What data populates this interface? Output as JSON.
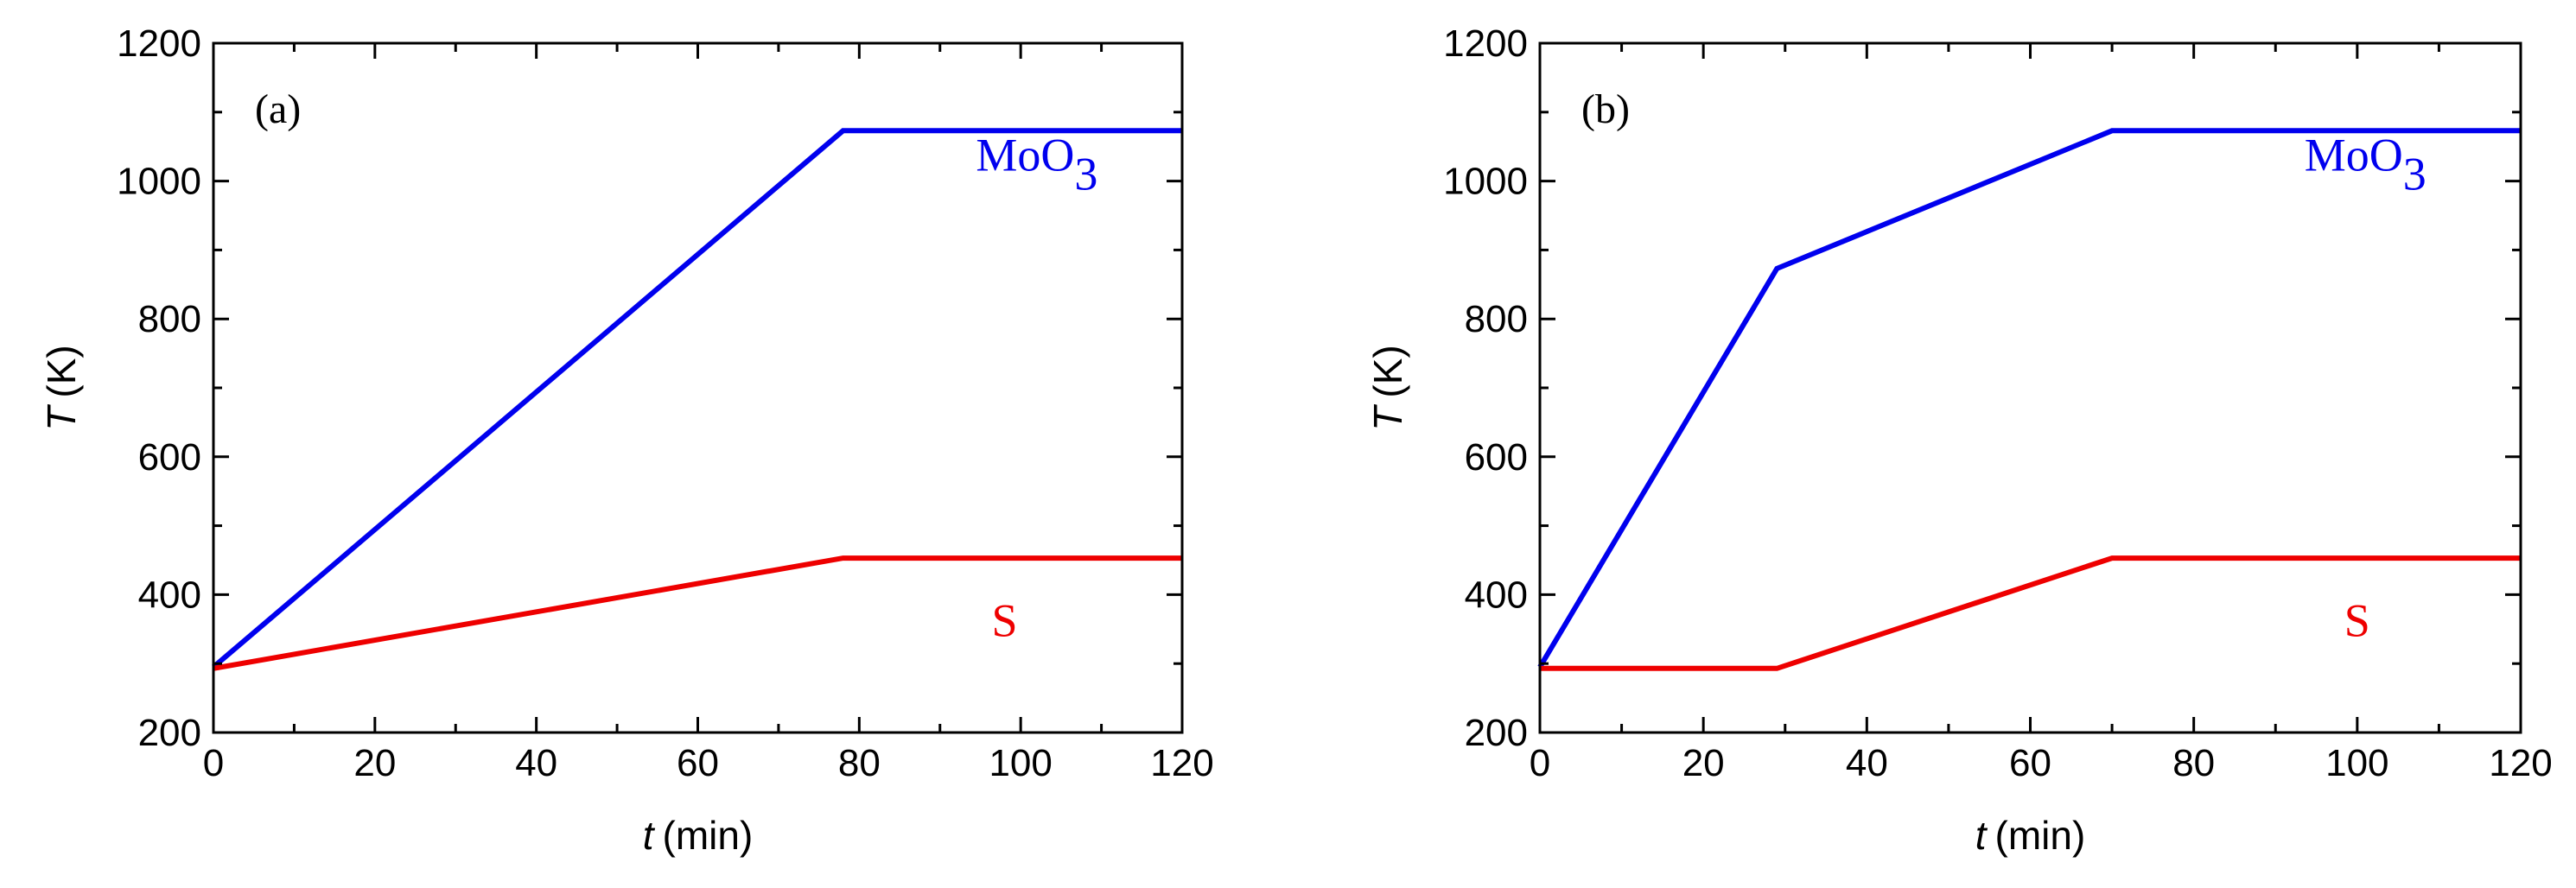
{
  "chart_data": [
    {
      "type": "line",
      "panel_label": "(a)",
      "xlabel_var": "t",
      "xlabel_unit": "(min)",
      "ylabel_var": "T",
      "ylabel_unit": "(K)",
      "xlim": [
        0,
        120
      ],
      "ylim": [
        200,
        1200
      ],
      "xticks": [
        0,
        20,
        40,
        60,
        80,
        100,
        120
      ],
      "yticks": [
        200,
        400,
        600,
        800,
        1000,
        1200
      ],
      "grid": false,
      "series": [
        {
          "name": "MoO3",
          "label_main": "MoO",
          "label_sub": "3",
          "color": "#0000ee",
          "x": [
            0,
            78,
            120
          ],
          "y": [
            295,
            1073,
            1073
          ],
          "label_at": [
            102,
            1015
          ]
        },
        {
          "name": "S",
          "label_main": "S",
          "label_sub": "",
          "color": "#ee0000",
          "x": [
            0,
            78,
            120
          ],
          "y": [
            293,
            453,
            453
          ],
          "label_at": [
            98,
            340
          ]
        }
      ]
    },
    {
      "type": "line",
      "panel_label": "(b)",
      "xlabel_var": "t",
      "xlabel_unit": "(min)",
      "ylabel_var": "T",
      "ylabel_unit": "(K)",
      "xlim": [
        0,
        120
      ],
      "ylim": [
        200,
        1200
      ],
      "xticks": [
        0,
        20,
        40,
        60,
        80,
        100,
        120
      ],
      "yticks": [
        200,
        400,
        600,
        800,
        1000,
        1200
      ],
      "grid": false,
      "series": [
        {
          "name": "MoO3",
          "label_main": "MoO",
          "label_sub": "3",
          "color": "#0000ee",
          "x": [
            0,
            29,
            70,
            120
          ],
          "y": [
            295,
            873,
            1073,
            1073
          ],
          "label_at": [
            101,
            1015
          ]
        },
        {
          "name": "S",
          "label_main": "S",
          "label_sub": "",
          "color": "#ee0000",
          "x": [
            0,
            29,
            70,
            120
          ],
          "y": [
            293,
            293,
            453,
            453
          ],
          "label_at": [
            100,
            340
          ]
        }
      ]
    }
  ]
}
